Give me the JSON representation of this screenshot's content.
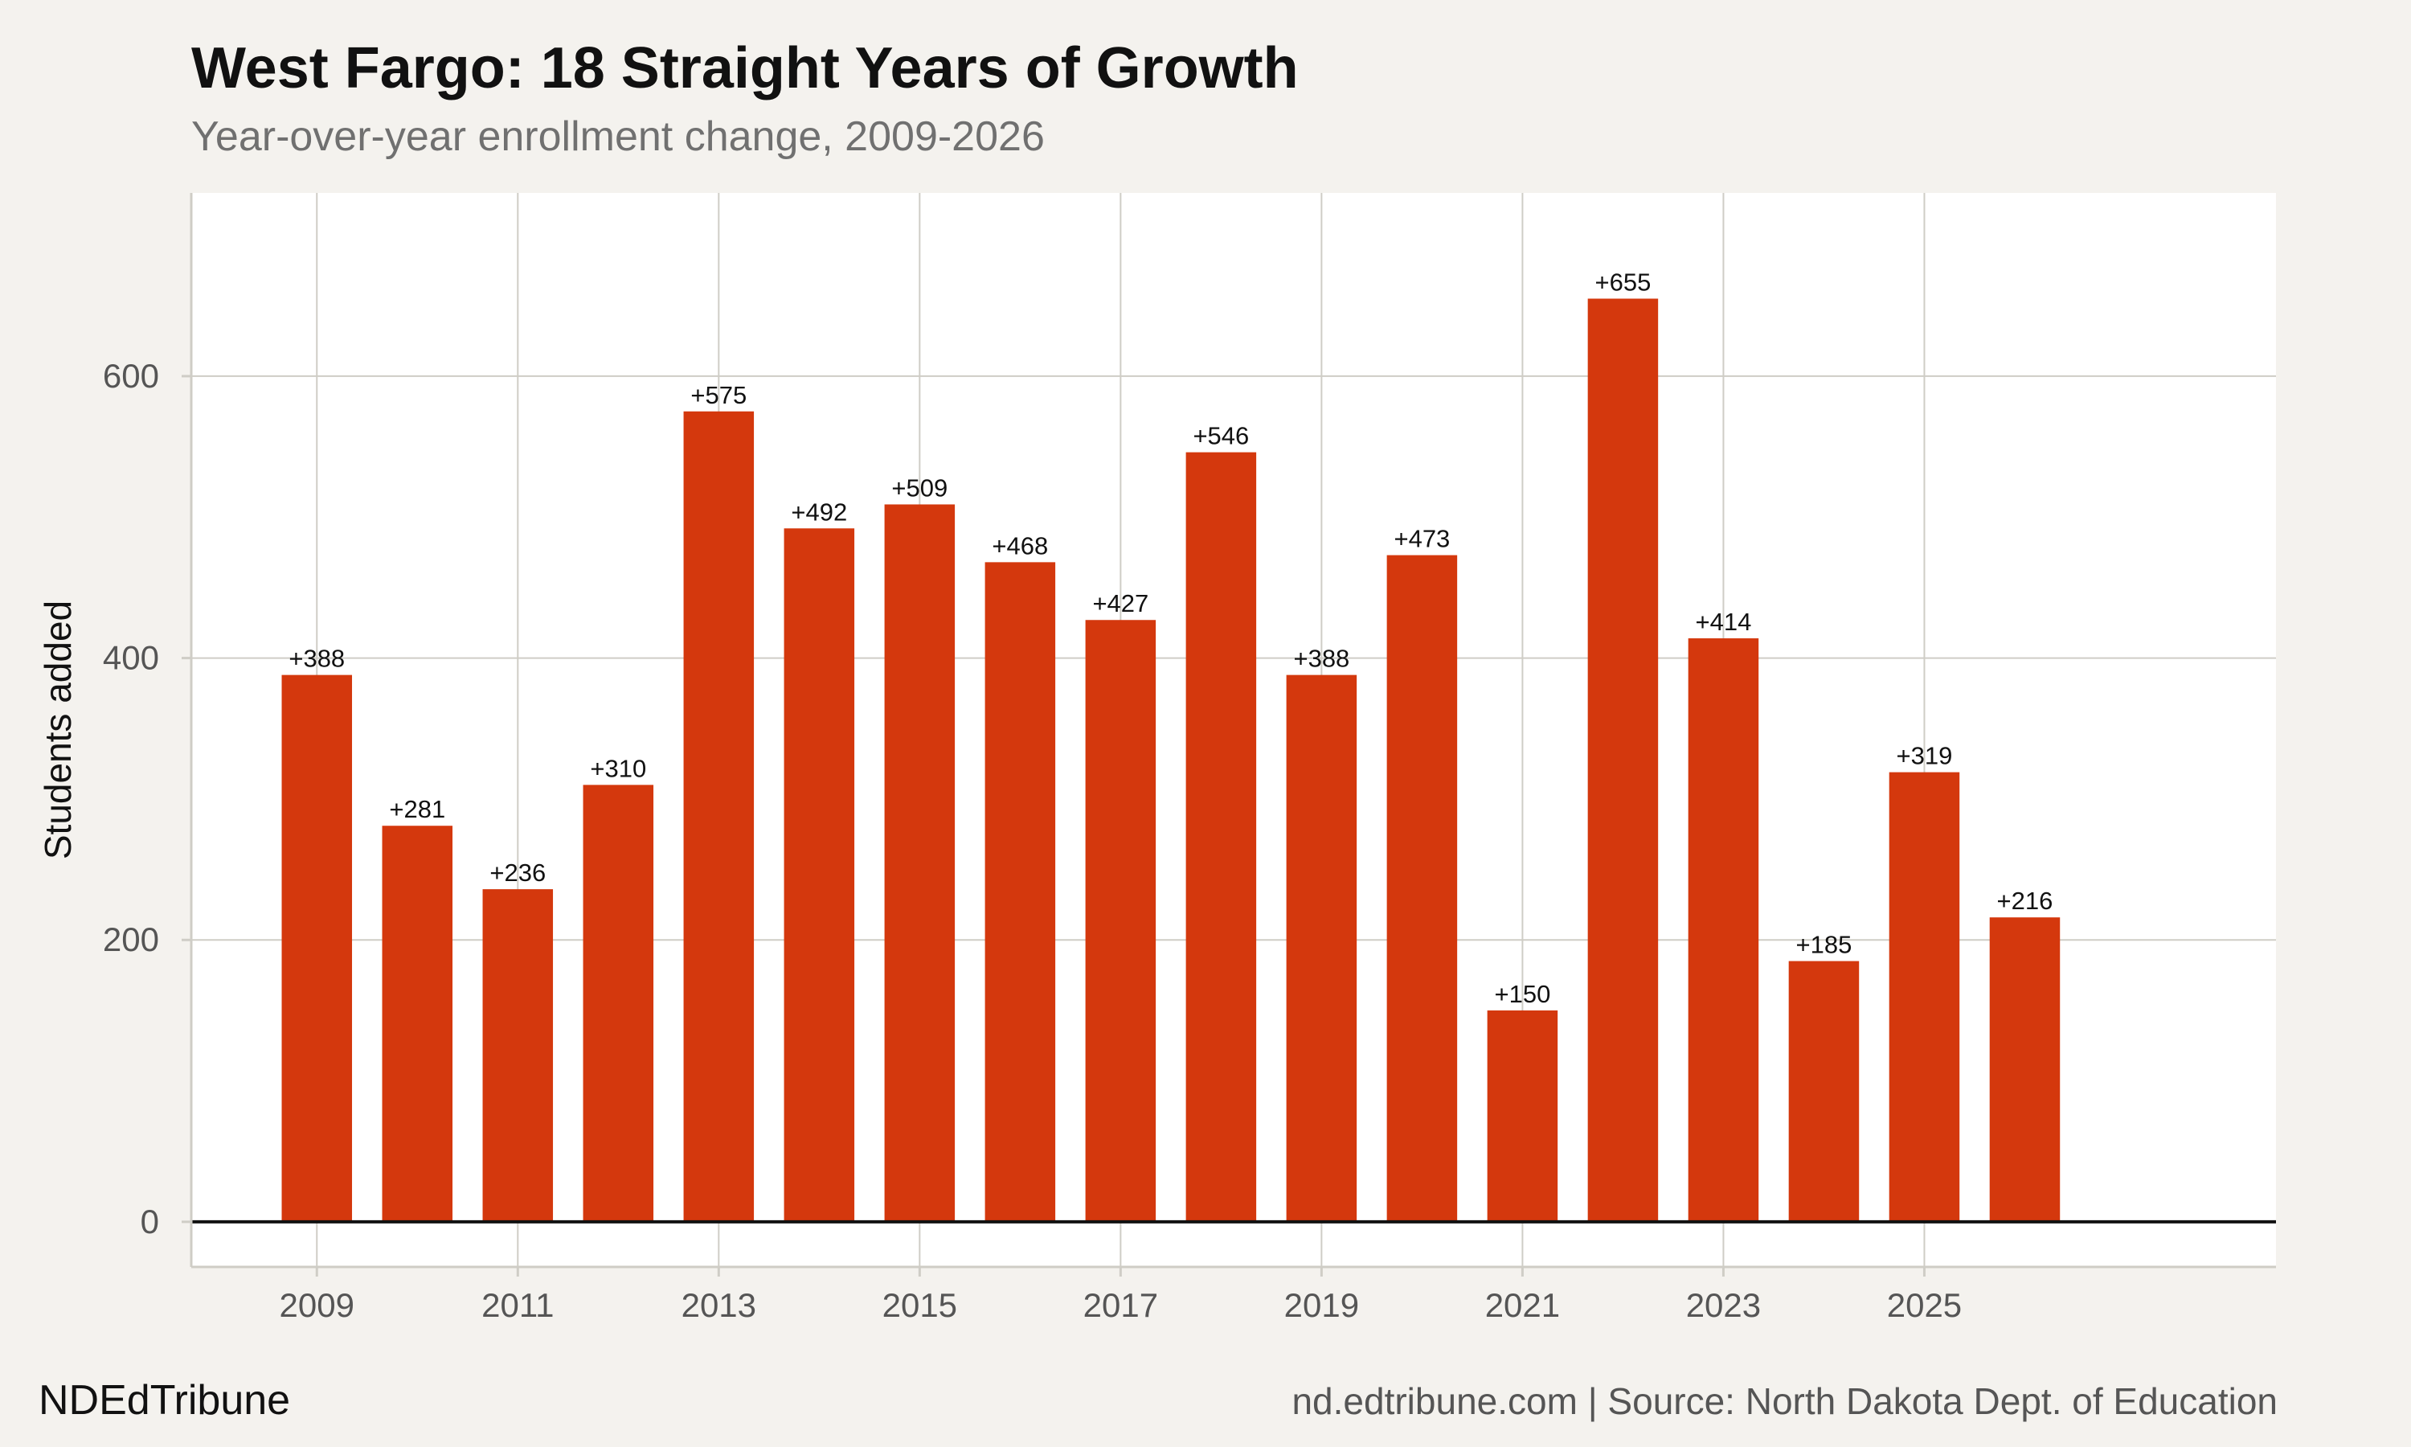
{
  "header": {
    "title": "West Fargo: 18 Straight Years of Growth",
    "subtitle": "Year-over-year enrollment change, 2009-2026"
  },
  "footer": {
    "brand": "NDEdTribune",
    "source": "nd.edtribune.com | Source: North Dakota Dept. of Education"
  },
  "colors": {
    "bar": "#d4380d",
    "background": "#f4f2ee",
    "panel": "#ffffff",
    "grid": "#cfcdc6",
    "zero_line": "#111111"
  },
  "chart_data": {
    "type": "bar",
    "title": "West Fargo: 18 Straight Years of Growth",
    "subtitle": "Year-over-year enrollment change, 2009-2026",
    "xlabel": "",
    "ylabel": "Students added",
    "x": [
      2009,
      2010,
      2011,
      2012,
      2013,
      2014,
      2015,
      2016,
      2017,
      2018,
      2019,
      2020,
      2021,
      2022,
      2023,
      2024,
      2025,
      2026
    ],
    "values": [
      388,
      281,
      236,
      310,
      575,
      492,
      509,
      468,
      427,
      546,
      388,
      473,
      150,
      655,
      414,
      185,
      319,
      216
    ],
    "data_labels": [
      "+388",
      "+281",
      "+236",
      "+310",
      "+575",
      "+492",
      "+509",
      "+468",
      "+427",
      "+546",
      "+388",
      "+473",
      "+150",
      "+655",
      "+414",
      "+185",
      "+319",
      "+216"
    ],
    "x_ticks": [
      2009,
      2011,
      2013,
      2015,
      2017,
      2019,
      2021,
      2023,
      2025
    ],
    "y_ticks": [
      0,
      200,
      400,
      600
    ],
    "xlim": [
      2007.75,
      2028.5
    ],
    "ylim": [
      -32,
      730
    ],
    "grid": true,
    "legend": "none"
  }
}
